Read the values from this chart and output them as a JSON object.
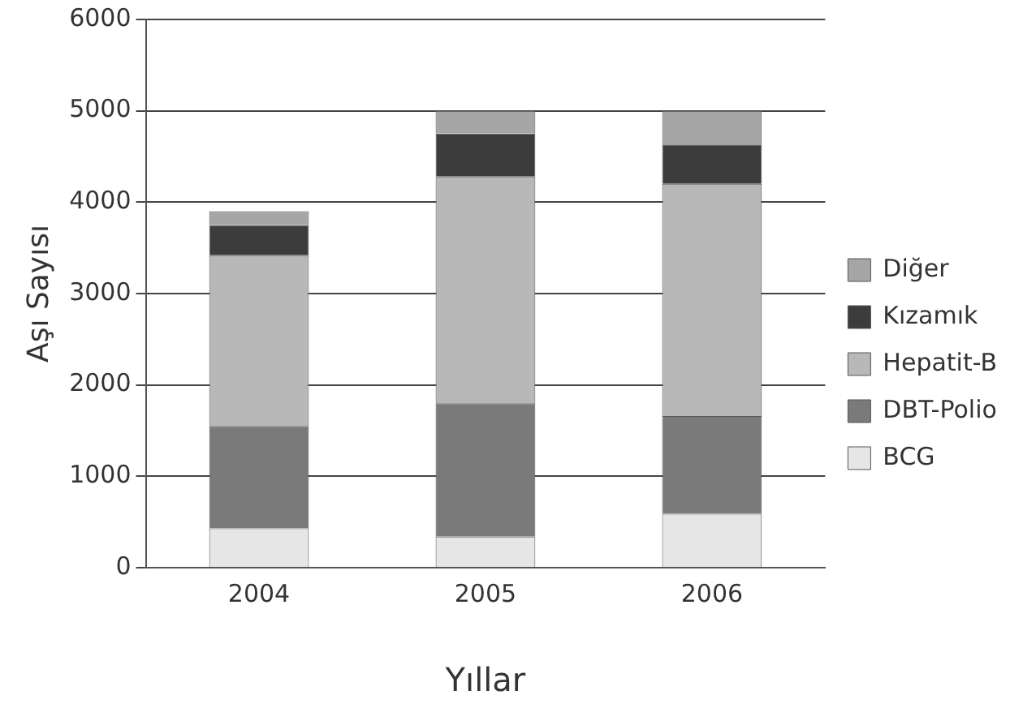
{
  "chart_data": {
    "type": "bar",
    "stacked": true,
    "xlabel": "Yıllar",
    "ylabel": "Aşı Sayısı",
    "categories": [
      "2004",
      "2005",
      "2006"
    ],
    "series": [
      {
        "name": "BCG",
        "color": "#e6e6e6",
        "values": [
          430,
          340,
          590
        ]
      },
      {
        "name": "DBT-Polio",
        "color": "#7a7a7a",
        "values": [
          1120,
          1460,
          1070
        ]
      },
      {
        "name": "Hepatit-B",
        "color": "#b8b8b8",
        "values": [
          1870,
          2480,
          2540
        ]
      },
      {
        "name": "Kızamık",
        "color": "#3c3c3c",
        "values": [
          330,
          470,
          430
        ]
      },
      {
        "name": "Diğer",
        "color": "#a6a6a6",
        "values": [
          150,
          250,
          370
        ]
      }
    ],
    "ylim": [
      0,
      6000
    ],
    "yticks": [
      0,
      1000,
      2000,
      3000,
      4000,
      5000,
      6000
    ],
    "grid": "y",
    "legend": "right"
  }
}
